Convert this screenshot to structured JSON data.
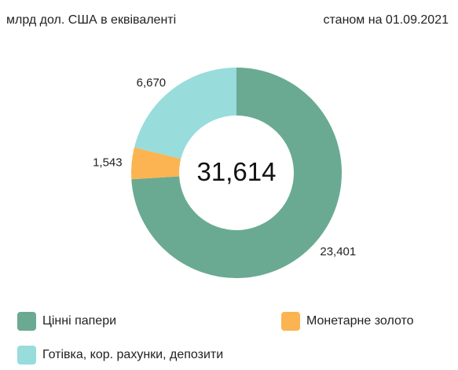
{
  "header": {
    "unit": "млрд дол. США в еквіваленті",
    "date": "станом на 01.09.2021"
  },
  "chart_data": {
    "type": "pie",
    "total_label": "31,614",
    "slices": [
      {
        "name": "Цінні папери",
        "value": 23.401,
        "label": "23,401",
        "color": "#6aaa92"
      },
      {
        "name": "Монетарне золото",
        "value": 1.543,
        "label": "1,543",
        "color": "#fbb451"
      },
      {
        "name": "Готівка, кор. рахунки, депозити",
        "value": 6.67,
        "label": "6,670",
        "color": "#98dcdc"
      }
    ]
  },
  "legend": [
    {
      "label": "Цінні папери",
      "color": "#6aaa92"
    },
    {
      "label": "Монетарне золото",
      "color": "#fbb451"
    },
    {
      "label": "Готівка, кор. рахунки, депозити",
      "color": "#98dcdc"
    }
  ]
}
